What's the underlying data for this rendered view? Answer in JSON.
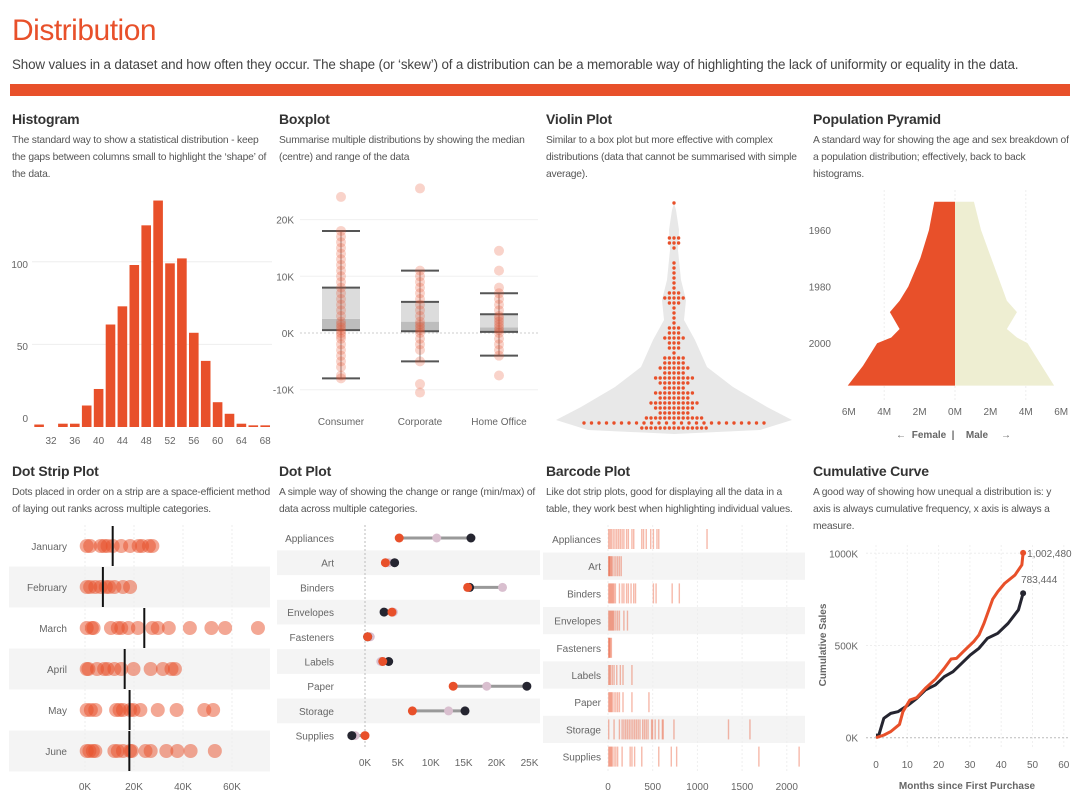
{
  "header": {
    "title": "Distribution",
    "subtitle": "Show values in a dataset and how often they occur. The shape (or ‘skew’) of a distribution can be a memorable way of highlighting the lack of uniformity or equality in the data."
  },
  "colors": {
    "accent": "#e8502a",
    "pink": "#d9bfcf",
    "dark": "#252530",
    "male": "#eeeed2",
    "band": "#f4f4f4"
  },
  "panels": [
    {
      "title": "Histogram",
      "description": "The standard way to show a statistical distribution - keep the gaps between columns small to highlight the ‘shape’ of the data."
    },
    {
      "title": "Boxplot",
      "description": "Summarise multiple distributions by showing the median (centre) and range of the data"
    },
    {
      "title": "Violin Plot",
      "description": "Similar to a box plot but more effective with complex distributions (data that cannot be summarised with simple average)."
    },
    {
      "title": "Population Pyramid",
      "description": "A standard way for showing the age and sex breakdown of a population distribution; effectively, back to back histograms."
    },
    {
      "title": "Dot Strip Plot",
      "description": "Dots placed in order on a strip are a space-efficient method of laying out ranks across multiple categories."
    },
    {
      "title": "Dot Plot",
      "description": "A simple way of showing the change or range (min/max) of data across multiple categories."
    },
    {
      "title": "Barcode Plot",
      "description": "Like dot strip plots, good for displaying all the data in a table, they work best when highlighting individual values."
    },
    {
      "title": "Cumulative Curve",
      "description": "A good way of showing how unequal a distribution is: y axis is always cumulative frequency, x axis is always a measure."
    }
  ],
  "chart_data": [
    {
      "type": "bar",
      "x": [
        30,
        32,
        34,
        36,
        38,
        40,
        42,
        44,
        46,
        48,
        50,
        52,
        54,
        56,
        58,
        60,
        62,
        64,
        66,
        68
      ],
      "values": [
        1.5,
        0,
        2,
        2,
        13,
        23,
        62,
        73,
        98,
        122,
        137,
        99,
        102,
        57,
        40,
        15,
        8,
        2,
        1,
        1
      ],
      "x_ticks": [
        "32",
        "36",
        "40",
        "44",
        "48",
        "52",
        "56",
        "60",
        "64",
        "68"
      ],
      "y_ticks": [
        "0",
        "50",
        "100"
      ],
      "ylim": [
        0,
        150
      ],
      "grid": true
    },
    {
      "type": "boxplot",
      "categories": [
        "Consumer",
        "Corporate",
        "Home Office"
      ],
      "unit": "K",
      "boxes": [
        {
          "min": -8,
          "q1": 0.5,
          "median": 2.5,
          "q3": 8,
          "max": 18
        },
        {
          "min": -5,
          "q1": 0.3,
          "median": 2,
          "q3": 5.5,
          "max": 11
        },
        {
          "min": -4,
          "q1": 0.2,
          "median": 1,
          "q3": 3.3,
          "max": 7
        }
      ],
      "points": [
        [
          24,
          18,
          17,
          16,
          15,
          14,
          13,
          12,
          11,
          10,
          9,
          8,
          7,
          6,
          5,
          4,
          3,
          2,
          1.5,
          1,
          0.5,
          0,
          -0.5,
          -1,
          -2,
          -3,
          -4,
          -5,
          -6,
          -7.5,
          -8
        ],
        [
          25.5,
          11,
          10,
          9,
          8,
          7,
          6,
          5,
          4,
          3,
          2,
          1.5,
          1,
          0.5,
          0,
          -1,
          -2,
          -3,
          -5,
          -9,
          -10.5
        ],
        [
          14.5,
          11,
          8,
          7,
          6,
          5,
          4,
          3,
          2.5,
          2,
          1.5,
          1,
          0.5,
          0,
          -1,
          -2,
          -3,
          -4,
          -7.5
        ]
      ],
      "y_ticks": [
        {
          "v": 20,
          "label": "20K"
        },
        {
          "v": 10,
          "label": "10K"
        },
        {
          "v": 0,
          "label": "0K"
        },
        {
          "v": -10,
          "label": "-10K"
        }
      ]
    },
    {
      "type": "violin",
      "dot_rows": [
        1,
        0,
        0,
        0,
        0,
        0,
        0,
        3,
        3,
        1,
        0,
        0,
        1,
        1,
        1,
        1,
        1,
        1,
        3,
        5,
        3,
        1,
        1,
        1,
        1,
        3,
        3,
        5,
        3,
        3,
        1,
        5,
        5,
        7,
        5,
        9,
        7,
        5,
        9,
        7,
        11,
        9,
        7,
        13,
        25,
        15
      ]
    },
    {
      "type": "population_pyramid",
      "years": [
        1950,
        1960,
        1970,
        1980,
        1985,
        1989,
        1995,
        1998,
        2000,
        2008,
        2015
      ],
      "female_millions": [
        1.17,
        1.47,
        1.96,
        2.64,
        3.13,
        3.68,
        3.13,
        3.6,
        4.4,
        5.2,
        6.06
      ],
      "male_millions": [
        1.07,
        1.47,
        2.05,
        2.64,
        2.93,
        3.5,
        2.93,
        3.5,
        4.1,
        4.9,
        5.6
      ],
      "y_ticks": [
        "1960",
        "1980",
        "2000"
      ],
      "x_ticks": [
        {
          "v": -6,
          "label": "6M"
        },
        {
          "v": -4,
          "label": "4M"
        },
        {
          "v": -2,
          "label": "2M"
        },
        {
          "v": 0,
          "label": "0M"
        },
        {
          "v": 2,
          "label": "2M"
        },
        {
          "v": 4,
          "label": "4M"
        },
        {
          "v": 6,
          "label": "6M"
        }
      ],
      "legend": {
        "left_arrow": "←",
        "female": "Female",
        "sep": "|",
        "male": "Male",
        "right_arrow": "→"
      }
    },
    {
      "type": "scatter",
      "categories": [
        "January",
        "February",
        "March",
        "April",
        "May",
        "June"
      ],
      "unit": "K",
      "values": [
        [
          0.7,
          2.1,
          6.4,
          7.8,
          9.2,
          11.3,
          14.8,
          18.4,
          21.9,
          23.3,
          26.1,
          27.5
        ],
        [
          0.7,
          2.1,
          4.2,
          6.4,
          8.5,
          9.9,
          12,
          15.5,
          18.4
        ],
        [
          0.7,
          2.8,
          3.5,
          10.6,
          13.4,
          14.8,
          17.7,
          21.6,
          27.5,
          29.7,
          34.2,
          42.8,
          51.6,
          57.2,
          70.6
        ],
        [
          0.7,
          1.4,
          4.9,
          7.8,
          9.2,
          12,
          14.8,
          19.8,
          26.8,
          31.8,
          35.3,
          36.7
        ],
        [
          0.7,
          2.4,
          4.2,
          12.7,
          14.1,
          15.5,
          18.4,
          19.8,
          22.6,
          29.7,
          37.4,
          48.7,
          52.3
        ],
        [
          0.7,
          1.8,
          3.2,
          4.2,
          12,
          13.4,
          15.5,
          18.4,
          19.1,
          24.7,
          26.8,
          33.2,
          37.7,
          43.1,
          53
        ]
      ],
      "medians": [
        11.3,
        7.3,
        24.2,
        16.2,
        18.2,
        18.1
      ],
      "x_ticks": [
        {
          "v": 0,
          "label": "0K"
        },
        {
          "v": 20,
          "label": "20K"
        },
        {
          "v": 40,
          "label": "40K"
        },
        {
          "v": 60,
          "label": "60K"
        }
      ]
    },
    {
      "type": "dot_plot",
      "categories": [
        "Appliances",
        "Art",
        "Binders",
        "Envelopes",
        "Fasteners",
        "Labels",
        "Paper",
        "Storage",
        "Supplies"
      ],
      "unit": "K",
      "series": [
        {
          "color": "#e8502a",
          "values": [
            5.2,
            3.1,
            15.6,
            4.1,
            0.4,
            2.7,
            13.4,
            7.2,
            0
          ]
        },
        {
          "color": "#d9bfcf",
          "values": [
            10.9,
            3.6,
            20.9,
            4.3,
            0.8,
            2.4,
            18.5,
            12.7,
            -1.5
          ]
        },
        {
          "color": "#252530",
          "values": [
            16.1,
            4.5,
            15.9,
            2.9,
            0.4,
            3.6,
            24.6,
            15.2,
            -2.0
          ]
        }
      ],
      "x_ticks": [
        {
          "v": 0,
          "label": "0K"
        },
        {
          "v": 5,
          "label": "5K"
        },
        {
          "v": 10,
          "label": "10K"
        },
        {
          "v": 15,
          "label": "15K"
        },
        {
          "v": 20,
          "label": "20K"
        },
        {
          "v": 25,
          "label": "25K"
        }
      ]
    },
    {
      "type": "barcode",
      "categories": [
        "Appliances",
        "Art",
        "Binders",
        "Envelopes",
        "Fasteners",
        "Labels",
        "Paper",
        "Storage",
        "Supplies"
      ],
      "values": [
        [
          0,
          15,
          30,
          50,
          70,
          90,
          110,
          130,
          150,
          170,
          200,
          220,
          260,
          280,
          370,
          390,
          420,
          470,
          500,
          540,
          560,
          1100
        ],
        [
          0,
          5,
          10,
          20,
          30,
          40,
          60,
          80,
          100,
          120,
          140
        ],
        [
          0,
          10,
          20,
          30,
          40,
          50,
          60,
          75,
          120,
          150,
          170,
          200,
          220,
          250,
          280,
          300,
          500,
          530,
          710,
          790
        ],
        [
          0,
          10,
          20,
          30,
          40,
          50,
          60,
          80,
          100,
          120,
          170,
          210
        ],
        [
          0,
          5,
          10,
          20,
          30
        ],
        [
          0,
          10,
          20,
          40,
          60,
          90,
          130,
          160,
          260
        ],
        [
          0,
          10,
          20,
          30,
          40,
          60,
          80,
          100,
          120,
          160,
          260,
          450
        ],
        [
          0,
          60,
          120,
          150,
          170,
          190,
          210,
          230,
          250,
          270,
          290,
          310,
          330,
          350,
          380,
          400,
          420,
          440,
          480,
          490,
          520,
          560,
          600,
          610,
          730,
          1340,
          1580
        ],
        [
          0,
          10,
          20,
          30,
          40,
          60,
          80,
          100,
          150,
          240,
          260,
          290,
          370,
          560,
          700,
          760,
          1680,
          2130
        ]
      ],
      "x_ticks": [
        "0",
        "500",
        "1000",
        "1500",
        "2000"
      ]
    },
    {
      "type": "line",
      "xlabel": "Months since First Purchase",
      "ylabel": "Cumulative Sales",
      "series": [
        {
          "color": "#e8502a",
          "end_label": "1,002,480",
          "x": [
            0,
            2.5,
            4.7,
            7,
            7.5,
            8.6,
            10.8,
            13,
            15.8,
            19,
            21.8,
            24,
            25.7,
            27.9,
            31.2,
            32.9,
            34.5,
            37.3,
            38.9,
            41.1,
            44.4,
            46.6,
            47
          ],
          "y": [
            0,
            14000,
            33000,
            65000,
            72000,
            141000,
            204000,
            217000,
            268000,
            318000,
            376000,
            427000,
            430000,
            467000,
            521000,
            557000,
            620000,
            752000,
            792000,
            837000,
            882000,
            937000,
            1002480
          ]
        },
        {
          "color": "#252530",
          "end_label": "783,444",
          "x": [
            0,
            0.9,
            2.5,
            4.7,
            7,
            10.3,
            13,
            15.8,
            19,
            21.8,
            24.6,
            26.8,
            30.1,
            32.9,
            35.6,
            38.9,
            42.2,
            45.5,
            47
          ],
          "y": [
            14000,
            14000,
            105000,
            132000,
            141000,
            177000,
            213000,
            259000,
            286000,
            331000,
            358000,
            394000,
            448000,
            485000,
            539000,
            566000,
            620000,
            693000,
            783444
          ]
        }
      ],
      "x_ticks": [
        "0",
        "10",
        "20",
        "30",
        "40",
        "50",
        "60"
      ],
      "y_ticks": [
        {
          "v": 0,
          "label": "0K"
        },
        {
          "v": 500000,
          "label": "500K"
        },
        {
          "v": 1000000,
          "label": "1000K"
        }
      ],
      "xlim": [
        0,
        60
      ],
      "ylim": [
        0,
        1000000
      ],
      "grid": true
    }
  ]
}
